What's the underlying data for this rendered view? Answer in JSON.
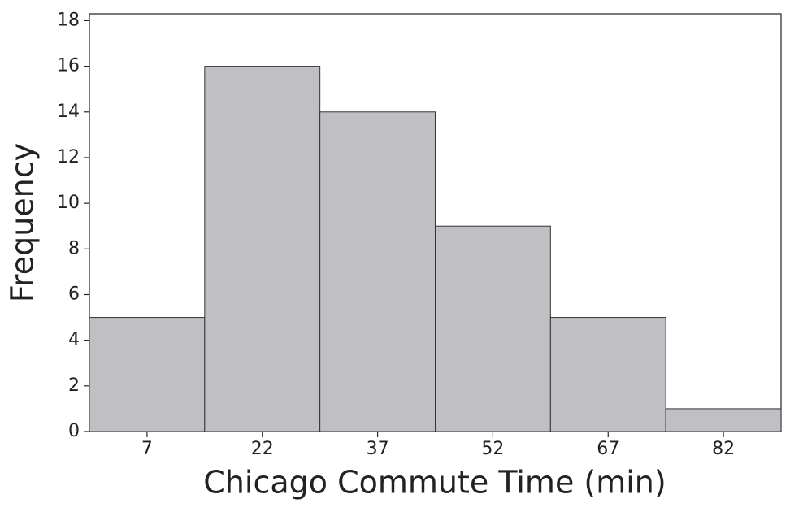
{
  "chart_data": {
    "type": "histogram",
    "xlabel": "Chicago Commute Time (min)",
    "ylabel": "Frequency",
    "bins": [
      -0.5,
      14.5,
      29.5,
      44.5,
      59.5,
      74.5,
      89.5
    ],
    "values": [
      5,
      16,
      14,
      9,
      5,
      1
    ],
    "color": "#c0c0c4",
    "xlim": [
      -0.5,
      89.5
    ],
    "xticks": [
      7,
      22,
      37,
      52,
      67,
      82
    ],
    "ylim": [
      0,
      18.3
    ],
    "yticks": [
      0,
      2,
      4,
      6,
      8,
      10,
      12,
      14,
      16,
      18
    ]
  }
}
